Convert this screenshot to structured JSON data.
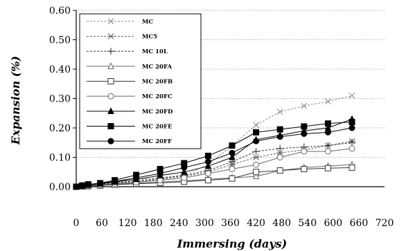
{
  "chart_data": {
    "type": "line",
    "title": "",
    "xlabel": "Immersing (days)",
    "ylabel": "Expansion (%)",
    "xlim": [
      0,
      720
    ],
    "ylim": [
      0,
      0.6
    ],
    "x_ticks": [
      "0",
      "60",
      "120",
      "180",
      "240",
      "300",
      "360",
      "420",
      "480",
      "540",
      "600",
      "660",
      "720"
    ],
    "y_ticks": [
      "0.00",
      "0.10",
      "0.20",
      "0.30",
      "0.40",
      "0.50",
      "0.60"
    ],
    "grid": "horizontal dotted",
    "legend_position": "top-left",
    "series": [
      {
        "name": "MC",
        "marker": "x",
        "dash": "dashed",
        "color": "#8c8c8c",
        "points": [
          [
            0,
            0
          ],
          [
            14,
            0.003
          ],
          [
            28,
            0.006
          ],
          [
            56,
            0.01
          ],
          [
            90,
            0.018
          ],
          [
            140,
            0.025
          ],
          [
            196,
            0.03
          ],
          [
            252,
            0.04
          ],
          [
            308,
            0.075
          ],
          [
            364,
            0.14
          ],
          [
            420,
            0.21
          ],
          [
            476,
            0.255
          ],
          [
            532,
            0.275
          ],
          [
            588,
            0.29
          ],
          [
            644,
            0.31
          ]
        ]
      },
      {
        "name": "MC5",
        "marker": "asterisk",
        "dash": "dashed",
        "color": "#666666",
        "points": [
          [
            0,
            0
          ],
          [
            14,
            0.002
          ],
          [
            28,
            0.005
          ],
          [
            56,
            0.008
          ],
          [
            90,
            0.012
          ],
          [
            140,
            0.017
          ],
          [
            196,
            0.025
          ],
          [
            252,
            0.035
          ],
          [
            308,
            0.05
          ],
          [
            364,
            0.075
          ],
          [
            420,
            0.1
          ],
          [
            476,
            0.115
          ],
          [
            532,
            0.125
          ],
          [
            588,
            0.14
          ],
          [
            644,
            0.155
          ]
        ]
      },
      {
        "name": "MC 10L",
        "marker": "plus",
        "dash": "dashed",
        "color": "#333333",
        "points": [
          [
            0,
            0
          ],
          [
            14,
            0.002
          ],
          [
            28,
            0.005
          ],
          [
            56,
            0.008
          ],
          [
            90,
            0.013
          ],
          [
            140,
            0.02
          ],
          [
            196,
            0.028
          ],
          [
            252,
            0.038
          ],
          [
            308,
            0.055
          ],
          [
            364,
            0.085
          ],
          [
            420,
            0.12
          ],
          [
            476,
            0.13
          ],
          [
            532,
            0.135
          ],
          [
            588,
            0.14
          ],
          [
            644,
            0.15
          ]
        ]
      },
      {
        "name": "MC 20FA",
        "marker": "triangle-open",
        "dash": "solid",
        "color": "#666666",
        "points": [
          [
            0,
            0
          ],
          [
            14,
            0.001
          ],
          [
            28,
            0.002
          ],
          [
            56,
            0.004
          ],
          [
            90,
            0.008
          ],
          [
            140,
            0.012
          ],
          [
            196,
            0.016
          ],
          [
            252,
            0.02
          ],
          [
            308,
            0.025
          ],
          [
            364,
            0.03
          ],
          [
            420,
            0.035
          ],
          [
            476,
            0.055
          ],
          [
            532,
            0.065
          ],
          [
            588,
            0.07
          ],
          [
            644,
            0.075
          ]
        ]
      },
      {
        "name": "MC 20FB",
        "marker": "square-open",
        "dash": "solid",
        "color": "#333333",
        "points": [
          [
            0,
            0
          ],
          [
            14,
            0.001
          ],
          [
            28,
            0.002
          ],
          [
            56,
            0.004
          ],
          [
            90,
            0.007
          ],
          [
            140,
            0.01
          ],
          [
            196,
            0.013
          ],
          [
            252,
            0.017
          ],
          [
            308,
            0.022
          ],
          [
            364,
            0.028
          ],
          [
            420,
            0.05
          ],
          [
            476,
            0.055
          ],
          [
            532,
            0.06
          ],
          [
            588,
            0.063
          ],
          [
            644,
            0.065
          ]
        ]
      },
      {
        "name": "MC 20FC",
        "marker": "circle-open",
        "dash": "solid",
        "color": "#666666",
        "points": [
          [
            0,
            0
          ],
          [
            14,
            0.002
          ],
          [
            28,
            0.004
          ],
          [
            56,
            0.006
          ],
          [
            90,
            0.01
          ],
          [
            140,
            0.015
          ],
          [
            196,
            0.022
          ],
          [
            252,
            0.03
          ],
          [
            308,
            0.045
          ],
          [
            364,
            0.06
          ],
          [
            420,
            0.075
          ],
          [
            476,
            0.1
          ],
          [
            532,
            0.12
          ],
          [
            588,
            0.12
          ],
          [
            644,
            0.13
          ]
        ]
      },
      {
        "name": "MC 20FD",
        "marker": "triangle-filled",
        "dash": "solid",
        "color": "#000000",
        "points": [
          [
            0,
            0
          ],
          [
            14,
            0.003
          ],
          [
            28,
            0.006
          ],
          [
            56,
            0.01
          ],
          [
            90,
            0.016
          ],
          [
            140,
            0.025
          ],
          [
            196,
            0.038
          ],
          [
            252,
            0.05
          ],
          [
            308,
            0.07
          ],
          [
            364,
            0.1
          ],
          [
            420,
            0.16
          ],
          [
            476,
            0.175
          ],
          [
            532,
            0.19
          ],
          [
            588,
            0.2
          ],
          [
            644,
            0.23
          ]
        ]
      },
      {
        "name": "MC 20FE",
        "marker": "square-filled",
        "dash": "solid",
        "color": "#000000",
        "points": [
          [
            0,
            0
          ],
          [
            14,
            0.004
          ],
          [
            28,
            0.008
          ],
          [
            56,
            0.012
          ],
          [
            90,
            0.022
          ],
          [
            140,
            0.04
          ],
          [
            196,
            0.06
          ],
          [
            252,
            0.08
          ],
          [
            308,
            0.105
          ],
          [
            364,
            0.14
          ],
          [
            420,
            0.185
          ],
          [
            476,
            0.195
          ],
          [
            532,
            0.205
          ],
          [
            588,
            0.215
          ],
          [
            644,
            0.22
          ]
        ]
      },
      {
        "name": "MC 20FF",
        "marker": "circle-filled",
        "dash": "solid",
        "color": "#000000",
        "points": [
          [
            0,
            0
          ],
          [
            14,
            0.003
          ],
          [
            28,
            0.007
          ],
          [
            56,
            0.011
          ],
          [
            90,
            0.018
          ],
          [
            140,
            0.03
          ],
          [
            196,
            0.045
          ],
          [
            252,
            0.065
          ],
          [
            308,
            0.085
          ],
          [
            364,
            0.115
          ],
          [
            420,
            0.155
          ],
          [
            476,
            0.17
          ],
          [
            532,
            0.18
          ],
          [
            588,
            0.185
          ],
          [
            644,
            0.2
          ]
        ]
      }
    ]
  }
}
